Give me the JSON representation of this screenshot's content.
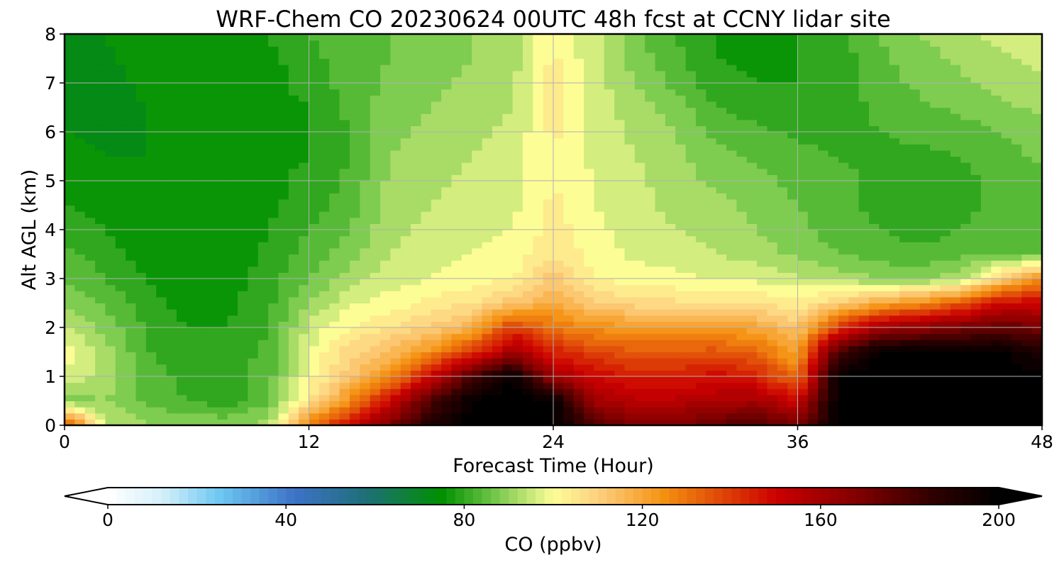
{
  "chart_data": {
    "type": "heatmap",
    "title": "WRF-Chem CO  20230624 00UTC 48h fcst at CCNY lidar site",
    "xlabel": "Forecast Time (Hour)",
    "ylabel": "Alt AGL (km)",
    "xlim": [
      0,
      48
    ],
    "ylim": [
      0,
      8
    ],
    "x_ticks": [
      0,
      12,
      24,
      36,
      48
    ],
    "x_tick_labels": [
      "0",
      "12",
      "24",
      "36",
      "48"
    ],
    "y_ticks": [
      0,
      1,
      2,
      3,
      4,
      5,
      6,
      7,
      8
    ],
    "y_tick_labels": [
      "0",
      "1",
      "2",
      "3",
      "4",
      "5",
      "6",
      "7",
      "8"
    ],
    "grid": true,
    "x_hours": [
      0,
      2,
      4,
      6,
      8,
      10,
      12,
      14,
      16,
      18,
      20,
      22,
      24,
      26,
      28,
      30,
      32,
      34,
      36,
      38,
      40,
      42,
      44,
      46,
      48
    ],
    "y_km": [
      0,
      0.5,
      1,
      1.5,
      2,
      2.5,
      3,
      3.5,
      4,
      4.5,
      5,
      5.5,
      6,
      6.5,
      7,
      7.5,
      8
    ],
    "values_ppbv": [
      [
        140,
        95,
        90,
        90,
        89,
        92,
        128,
        150,
        170,
        190,
        200,
        200,
        200,
        180,
        170,
        170,
        175,
        180,
        170,
        200,
        200,
        200,
        200,
        200,
        200
      ],
      [
        88,
        90,
        85,
        82,
        80,
        85,
        105,
        125,
        150,
        180,
        200,
        200,
        200,
        160,
        155,
        155,
        158,
        160,
        150,
        200,
        200,
        200,
        200,
        200,
        200
      ],
      [
        98,
        92,
        85,
        80,
        80,
        84,
        100,
        112,
        125,
        150,
        180,
        200,
        160,
        150,
        145,
        145,
        148,
        145,
        130,
        200,
        200,
        200,
        200,
        200,
        200
      ],
      [
        100,
        93,
        82,
        80,
        80,
        83,
        98,
        108,
        115,
        125,
        140,
        160,
        145,
        138,
        135,
        135,
        136,
        132,
        120,
        180,
        200,
        200,
        200,
        200,
        190
      ],
      [
        95,
        88,
        82,
        78,
        78,
        82,
        95,
        102,
        106,
        110,
        118,
        140,
        130,
        125,
        123,
        122,
        122,
        120,
        112,
        140,
        160,
        165,
        170,
        175,
        170
      ],
      [
        90,
        85,
        80,
        76,
        77,
        81,
        90,
        97,
        100,
        103,
        106,
        112,
        120,
        110,
        108,
        107,
        107,
        106,
        103,
        110,
        120,
        125,
        135,
        150,
        150
      ],
      [
        86,
        82,
        78,
        75,
        76,
        80,
        86,
        92,
        96,
        98,
        100,
        102,
        112,
        102,
        100,
        99,
        98,
        97,
        95,
        92,
        90,
        89,
        92,
        110,
        125
      ],
      [
        83,
        80,
        76,
        74,
        75,
        79,
        84,
        88,
        94,
        96,
        98,
        99,
        106,
        100,
        97,
        96,
        94,
        92,
        89,
        86,
        84,
        83,
        85,
        86,
        86
      ],
      [
        80,
        78,
        75,
        74,
        75,
        78,
        82,
        86,
        93,
        95,
        97,
        98,
        104,
        99,
        96,
        94,
        92,
        90,
        87,
        84,
        82,
        80,
        82,
        84,
        85
      ],
      [
        78,
        77,
        75,
        74,
        75,
        77,
        80,
        84,
        92,
        94,
        96,
        97,
        103,
        98,
        95,
        93,
        91,
        89,
        86,
        83,
        81,
        80,
        81,
        83,
        84
      ],
      [
        76,
        75,
        74,
        74,
        75,
        77,
        79,
        83,
        91,
        93,
        95,
        97,
        102,
        98,
        95,
        92,
        89,
        87,
        85,
        83,
        81,
        80,
        81,
        83,
        85
      ],
      [
        75,
        74,
        74,
        75,
        76,
        77,
        78,
        82,
        90,
        92,
        94,
        96,
        102,
        97,
        94,
        91,
        87,
        85,
        83,
        82,
        81,
        81,
        82,
        84,
        87
      ],
      [
        74,
        73,
        74,
        75,
        76,
        77,
        78,
        82,
        89,
        91,
        93,
        95,
        103,
        97,
        93,
        90,
        85,
        83,
        81,
        81,
        82,
        83,
        84,
        86,
        89
      ],
      [
        73,
        72,
        74,
        76,
        77,
        77,
        78,
        83,
        88,
        90,
        92,
        94,
        104,
        96,
        92,
        88,
        82,
        80,
        79,
        80,
        83,
        85,
        87,
        89,
        91
      ],
      [
        72,
        72,
        75,
        77,
        77,
        77,
        79,
        84,
        87,
        89,
        91,
        93,
        104,
        96,
        90,
        85,
        79,
        78,
        78,
        80,
        84,
        87,
        89,
        91,
        93
      ],
      [
        71,
        73,
        76,
        77,
        77,
        77,
        80,
        85,
        86,
        88,
        90,
        92,
        103,
        95,
        88,
        83,
        78,
        77,
        78,
        80,
        85,
        88,
        91,
        93,
        95
      ],
      [
        70,
        74,
        77,
        78,
        78,
        78,
        82,
        86,
        86,
        88,
        90,
        92,
        102,
        95,
        87,
        82,
        78,
        77,
        78,
        80,
        86,
        90,
        93,
        95,
        97
      ]
    ],
    "colorbar": {
      "label": "CO  (ppbv)",
      "min": 0,
      "max": 200,
      "extend": "both",
      "ticks": [
        0,
        40,
        80,
        120,
        160,
        200
      ],
      "tick_labels": [
        "0",
        "40",
        "80",
        "120",
        "160",
        "200"
      ],
      "stops": [
        {
          "v": 0,
          "color": "#ffffff"
        },
        {
          "v": 12,
          "color": "#d6f0fa"
        },
        {
          "v": 25,
          "color": "#6ec8f2"
        },
        {
          "v": 42,
          "color": "#3d72c8"
        },
        {
          "v": 58,
          "color": "#1e6f78"
        },
        {
          "v": 75,
          "color": "#009000"
        },
        {
          "v": 88,
          "color": "#7ecc50"
        },
        {
          "v": 100,
          "color": "#fdfd96"
        },
        {
          "v": 110,
          "color": "#fdd080"
        },
        {
          "v": 125,
          "color": "#f49010"
        },
        {
          "v": 150,
          "color": "#cc0000"
        },
        {
          "v": 170,
          "color": "#7a0000"
        },
        {
          "v": 185,
          "color": "#300000"
        },
        {
          "v": 200,
          "color": "#000000"
        }
      ]
    }
  }
}
